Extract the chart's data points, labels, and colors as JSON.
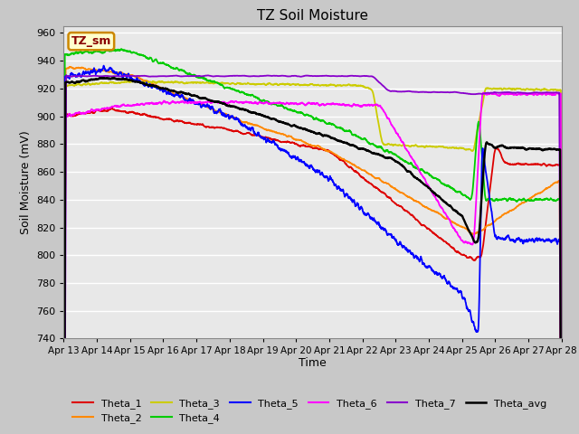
{
  "title": "TZ Soil Moisture",
  "xlabel": "Time",
  "ylabel": "Soil Moisture (mV)",
  "ylim": [
    740,
    965
  ],
  "yticks": [
    740,
    760,
    780,
    800,
    820,
    840,
    860,
    880,
    900,
    920,
    940,
    960
  ],
  "xtick_labels": [
    "Apr 13",
    "Apr 14",
    "Apr 15",
    "Apr 16",
    "Apr 17",
    "Apr 18",
    "Apr 19",
    "Apr 20",
    "Apr 21",
    "Apr 22",
    "Apr 23",
    "Apr 24",
    "Apr 25",
    "Apr 26",
    "Apr 27",
    "Apr 28"
  ],
  "colors": {
    "Theta_1": "#dd0000",
    "Theta_2": "#ff8800",
    "Theta_3": "#cccc00",
    "Theta_4": "#00cc00",
    "Theta_5": "#0000ff",
    "Theta_6": "#ff00ff",
    "Theta_7": "#8800cc",
    "Theta_avg": "#000000"
  },
  "legend_box_facecolor": "#ffffcc",
  "legend_box_edgecolor": "#cc8800",
  "legend_box_text": "TZ_sm",
  "legend_box_textcolor": "#880000",
  "fig_facecolor": "#c8c8c8",
  "axes_facecolor": "#e8e8e8",
  "grid_color": "#ffffff"
}
